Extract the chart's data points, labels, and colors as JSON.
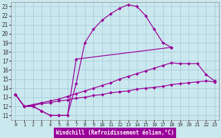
{
  "xlabel": "Windchill (Refroidissement éolien,°C)",
  "background_color": "#cbe8ef",
  "grid_color": "#a8cdd8",
  "line_color": "#990099",
  "xlim": [
    -0.5,
    23.5
  ],
  "ylim": [
    10.5,
    23.5
  ],
  "xticks": [
    0,
    1,
    2,
    3,
    4,
    5,
    6,
    7,
    8,
    9,
    10,
    11,
    12,
    13,
    14,
    15,
    16,
    17,
    18,
    19,
    20,
    21,
    22,
    23
  ],
  "yticks": [
    11,
    12,
    13,
    14,
    15,
    16,
    17,
    18,
    19,
    20,
    21,
    22,
    23
  ],
  "line1_x": [
    0,
    1,
    2,
    3,
    4,
    5,
    6,
    7,
    8,
    9,
    10,
    11,
    12,
    13,
    14,
    15,
    16,
    17,
    18
  ],
  "line1_y": [
    13.3,
    12.0,
    12.0,
    11.5,
    11.0,
    11.0,
    11.0,
    14.5,
    19.0,
    20.5,
    21.5,
    22.2,
    22.8,
    23.2,
    23.0,
    22.0,
    20.5,
    19.0,
    18.5
  ],
  "line2_x": [
    0,
    1,
    2,
    3,
    4,
    5,
    6,
    7,
    18
  ],
  "line2_y": [
    13.3,
    12.0,
    12.0,
    11.5,
    11.0,
    11.0,
    11.0,
    17.2,
    18.5
  ],
  "line3_x": [
    0,
    1,
    2,
    3,
    4,
    5,
    6,
    7,
    8,
    9,
    10,
    11,
    12,
    13,
    14,
    15,
    16,
    17,
    18,
    19,
    20,
    21,
    22,
    23
  ],
  "line3_y": [
    13.3,
    12.0,
    12.2,
    12.4,
    12.6,
    12.8,
    13.1,
    13.4,
    13.7,
    14.0,
    14.3,
    14.6,
    15.0,
    15.3,
    15.6,
    15.9,
    16.2,
    16.5,
    16.8,
    16.7,
    16.7,
    16.7,
    15.5,
    14.8
  ],
  "line4_x": [
    0,
    1,
    2,
    3,
    4,
    5,
    6,
    7,
    8,
    9,
    10,
    11,
    12,
    13,
    14,
    15,
    16,
    17,
    18,
    19,
    20,
    21,
    22,
    23
  ],
  "line4_y": [
    13.3,
    12.0,
    12.1,
    12.3,
    12.4,
    12.6,
    12.7,
    12.9,
    13.0,
    13.2,
    13.3,
    13.5,
    13.6,
    13.7,
    13.9,
    14.0,
    14.1,
    14.2,
    14.4,
    14.5,
    14.6,
    14.7,
    14.8,
    14.7
  ]
}
